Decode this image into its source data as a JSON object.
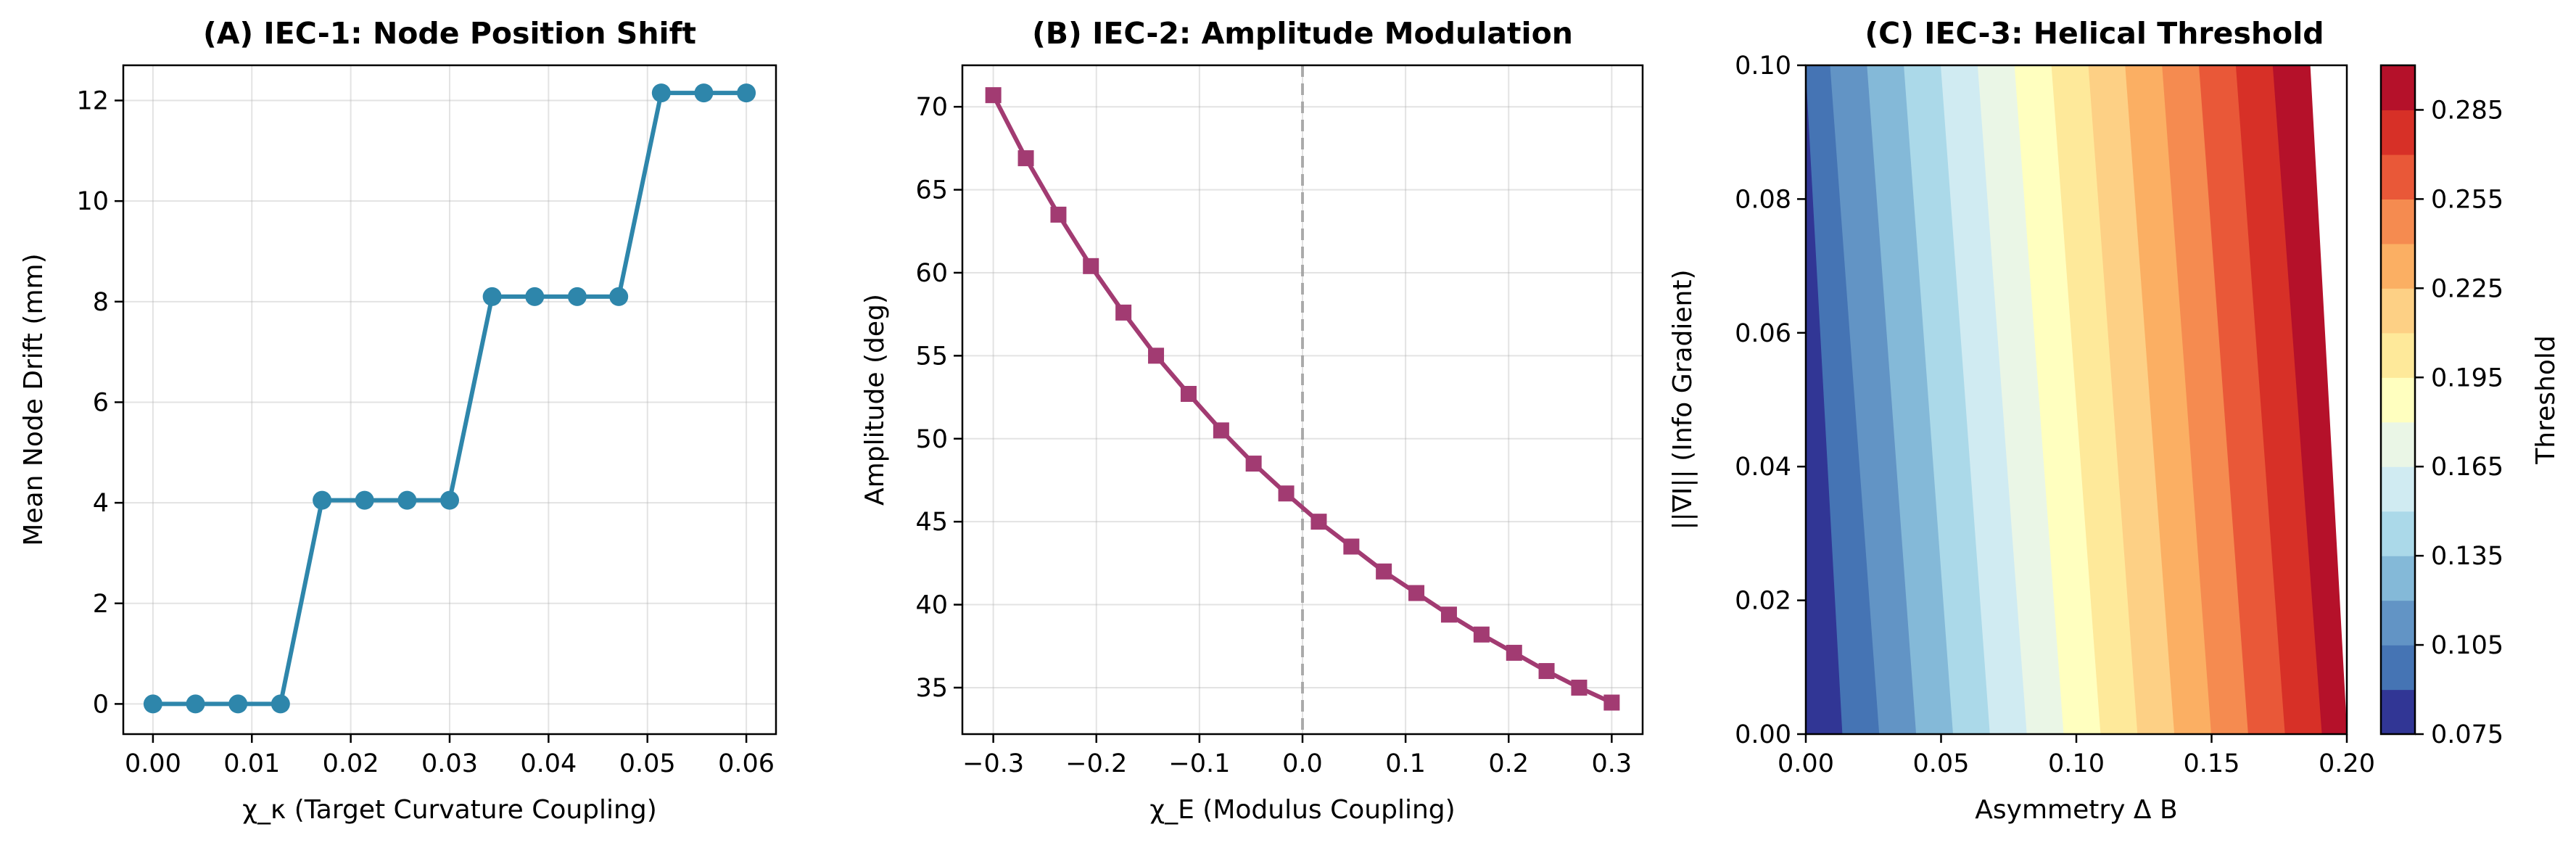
{
  "chart_data": [
    {
      "type": "line",
      "title": "(A) IEC-1: Node Position Shift",
      "xlabel": "χ_κ (Target Curvature Coupling)",
      "ylabel": "Mean Node Drift (mm)",
      "xlim": [
        -0.003,
        0.063
      ],
      "ylim": [
        -0.6,
        12.7
      ],
      "xticks": [
        "0.00",
        "0.01",
        "0.02",
        "0.03",
        "0.04",
        "0.05",
        "0.06"
      ],
      "yticks": [
        "0",
        "2",
        "4",
        "6",
        "8",
        "10",
        "12"
      ],
      "grid": true,
      "color": "#2e86ab",
      "marker": "circle",
      "series": [
        {
          "x": [
            0.0,
            0.0043,
            0.0086,
            0.0129,
            0.0171,
            0.0214,
            0.0257,
            0.03,
            0.0343,
            0.0386,
            0.0429,
            0.0471,
            0.0514,
            0.0557,
            0.06
          ],
          "values": [
            0,
            0,
            0,
            0,
            4.05,
            4.05,
            4.05,
            4.05,
            8.1,
            8.1,
            8.1,
            8.1,
            12.15,
            12.15,
            12.15
          ]
        }
      ]
    },
    {
      "type": "line",
      "title": "(B) IEC-2: Amplitude Modulation",
      "xlabel": "χ_E (Modulus Coupling)",
      "ylabel": "Amplitude (deg)",
      "xlim": [
        -0.33,
        0.33
      ],
      "ylim": [
        32.2,
        72.5
      ],
      "xticks": [
        "−0.3",
        "−0.2",
        "−0.1",
        "0.0",
        "0.1",
        "0.2",
        "0.3"
      ],
      "yticks": [
        "35",
        "40",
        "45",
        "50",
        "55",
        "60",
        "65",
        "70"
      ],
      "grid": true,
      "vline": 0,
      "color": "#a23b72",
      "marker": "square",
      "series": [
        {
          "x": [
            -0.3,
            -0.2684,
            -0.2368,
            -0.2053,
            -0.1737,
            -0.1421,
            -0.1105,
            -0.0789,
            -0.0474,
            -0.0158,
            0.0158,
            0.0474,
            0.0789,
            0.1105,
            0.1421,
            0.1737,
            0.2053,
            0.2368,
            0.2684,
            0.3
          ],
          "values": [
            70.7,
            66.9,
            63.5,
            60.4,
            57.6,
            55.0,
            52.7,
            50.5,
            48.5,
            46.7,
            45.0,
            43.5,
            42.0,
            40.7,
            39.4,
            38.2,
            37.1,
            36.0,
            35.0,
            34.1
          ]
        }
      ]
    },
    {
      "type": "heatmap",
      "title": "(C) IEC-3: Helical Threshold",
      "xlabel": "Asymmetry Δ B",
      "ylabel": "||∇I|| (Info Gradient)",
      "xlim": [
        0.0,
        0.2
      ],
      "ylim": [
        0.0,
        0.1
      ],
      "xticks": [
        "0.00",
        "0.05",
        "0.10",
        "0.15",
        "0.20"
      ],
      "yticks": [
        "0.00",
        "0.02",
        "0.04",
        "0.06",
        "0.08",
        "0.10"
      ],
      "colorbar_label": "Threshold",
      "colorbar_ticks": [
        "0.075",
        "0.105",
        "0.135",
        "0.165",
        "0.195",
        "0.225",
        "0.255",
        "0.285"
      ],
      "colorbar_range": [
        0.075,
        0.3
      ],
      "level_colors": [
        "#313695",
        "#4574b4",
        "#6294c5",
        "#84b9d8",
        "#abd9e9",
        "#d0ebf2",
        "#eaf6e6",
        "#ffffbf",
        "#fee99a",
        "#fdd085",
        "#fbaf63",
        "#f58b50",
        "#e95838",
        "#d73027",
        "#b5112a"
      ]
    }
  ]
}
